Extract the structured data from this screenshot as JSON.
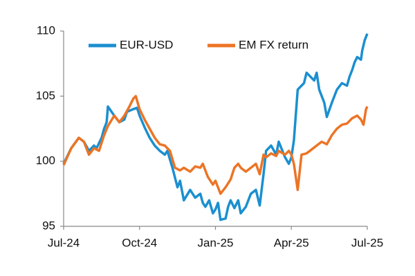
{
  "chart_data": {
    "type": "line",
    "xlim": [
      0,
      12
    ],
    "xticks": [
      {
        "value": 0,
        "label": "Jul-24"
      },
      {
        "value": 3,
        "label": "Oct-24"
      },
      {
        "value": 6,
        "label": "Jan-25"
      },
      {
        "value": 9,
        "label": "Apr-25"
      },
      {
        "value": 12,
        "label": "Jul-25"
      }
    ],
    "ylim": [
      95,
      110
    ],
    "yticks": [
      95,
      100,
      105,
      110
    ],
    "grid": false,
    "legend": "top",
    "series": [
      {
        "name": "EUR-USD",
        "color": "#1b8fd0",
        "x": [
          0,
          0.3,
          0.6,
          0.8,
          1.0,
          1.2,
          1.3,
          1.5,
          1.6,
          1.7,
          1.75,
          2.0,
          2.2,
          2.4,
          2.5,
          2.75,
          2.9,
          3.0,
          3.2,
          3.4,
          3.6,
          3.8,
          4.0,
          4.1,
          4.3,
          4.5,
          4.6,
          4.75,
          5.0,
          5.2,
          5.4,
          5.5,
          5.6,
          5.75,
          5.9,
          6.0,
          6.1,
          6.2,
          6.4,
          6.5,
          6.6,
          6.75,
          6.9,
          7.0,
          7.2,
          7.4,
          7.6,
          7.75,
          7.9,
          8.0,
          8.2,
          8.4,
          8.5,
          8.75,
          8.9,
          9.0,
          9.1,
          9.25,
          9.5,
          9.6,
          9.75,
          9.9,
          10.0,
          10.1,
          10.3,
          10.4,
          10.6,
          10.8,
          11.0,
          11.2,
          11.3,
          11.4,
          11.5,
          11.6,
          11.75,
          11.8,
          11.9,
          12
        ],
        "values": [
          99.8,
          101,
          101.8,
          101.5,
          100.8,
          101.2,
          101,
          101.8,
          102.5,
          103,
          104.2,
          103.5,
          103,
          103.2,
          103.8,
          104,
          104.1,
          103.5,
          102.6,
          101.8,
          101.2,
          100.8,
          100.5,
          100.8,
          99.5,
          98,
          98.5,
          97,
          97.8,
          97.2,
          97.5,
          96.8,
          96.5,
          97,
          96,
          96.3,
          96.8,
          95.5,
          95.6,
          96.5,
          97,
          96.4,
          97,
          96,
          96.5,
          97.5,
          97.8,
          96.6,
          99,
          100.8,
          101.2,
          100.5,
          101.5,
          100.3,
          99.8,
          100.3,
          101.6,
          105.5,
          106,
          106.8,
          106.5,
          106.2,
          106.8,
          105.5,
          104.5,
          103.4,
          104.5,
          105.5,
          106,
          105.8,
          106.5,
          107,
          107.6,
          108,
          107.8,
          108.5,
          109.3,
          109.8
        ]
      },
      {
        "name": "EM FX return",
        "color": "#ec7425",
        "x": [
          0,
          0.3,
          0.6,
          0.8,
          1.0,
          1.2,
          1.4,
          1.6,
          1.75,
          2.0,
          2.2,
          2.4,
          2.6,
          2.75,
          2.85,
          3.0,
          3.2,
          3.4,
          3.6,
          3.8,
          4.0,
          4.2,
          4.4,
          4.6,
          4.75,
          5.0,
          5.2,
          5.4,
          5.5,
          5.7,
          5.9,
          6.0,
          6.2,
          6.4,
          6.5,
          6.6,
          6.75,
          6.9,
          7.0,
          7.2,
          7.4,
          7.6,
          7.75,
          7.9,
          8.0,
          8.2,
          8.4,
          8.5,
          8.75,
          8.9,
          9.0,
          9.1,
          9.25,
          9.4,
          9.6,
          9.8,
          10.0,
          10.2,
          10.4,
          10.6,
          10.8,
          11.0,
          11.2,
          11.4,
          11.6,
          11.75,
          11.85,
          11.95,
          12
        ],
        "values": [
          99.7,
          101,
          101.8,
          101.5,
          100.5,
          101,
          100.8,
          102,
          102.7,
          103.5,
          103,
          103.5,
          104.2,
          104.8,
          105,
          104,
          103.2,
          102.5,
          101.8,
          101.3,
          101.2,
          100.8,
          99.5,
          99.3,
          99.5,
          99.2,
          99.6,
          99.5,
          99.8,
          98.8,
          98.2,
          98.5,
          97.5,
          98,
          98.3,
          98.6,
          99.5,
          99.8,
          99.5,
          99.2,
          99.5,
          99.8,
          99,
          100.5,
          100.3,
          100.6,
          100.4,
          100.8,
          100.5,
          100.8,
          100.5,
          99.8,
          97.8,
          100.5,
          100.6,
          100.9,
          101.2,
          101.5,
          101.3,
          102,
          102.5,
          102.8,
          102.9,
          103.3,
          103.5,
          103.2,
          102.8,
          104,
          104.2
        ]
      }
    ]
  }
}
